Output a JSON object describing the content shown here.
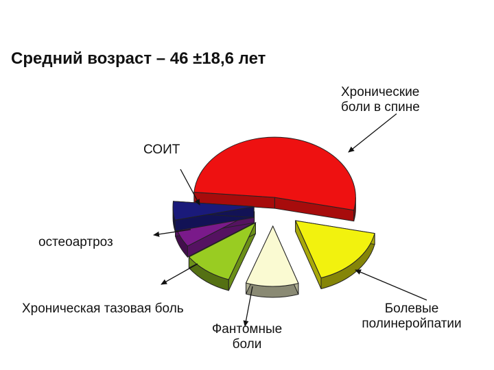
{
  "title": "Средний возраст – 46 ±18,6 лет",
  "chart_data": {
    "type": "pie",
    "three_d": true,
    "exploded": true,
    "legend": "none",
    "slices": [
      {
        "label": "Хронические\nболи в спине",
        "value": 52,
        "color": "#ee1111"
      },
      {
        "label": "Болевые\nполинеройпатии",
        "value": 16.5,
        "color": "#f2f20e"
      },
      {
        "label": "Фантомные\nболи",
        "value": 10.5,
        "color": "#fafad2"
      },
      {
        "label": "Хроническая тазовая боль",
        "value": 10,
        "color": "#99cc22"
      },
      {
        "label": "остеоартроз",
        "value": 6,
        "color": "#7a1a8a"
      },
      {
        "label": "СОИТ",
        "value": 5,
        "color": "#1a1a7a"
      }
    ]
  }
}
